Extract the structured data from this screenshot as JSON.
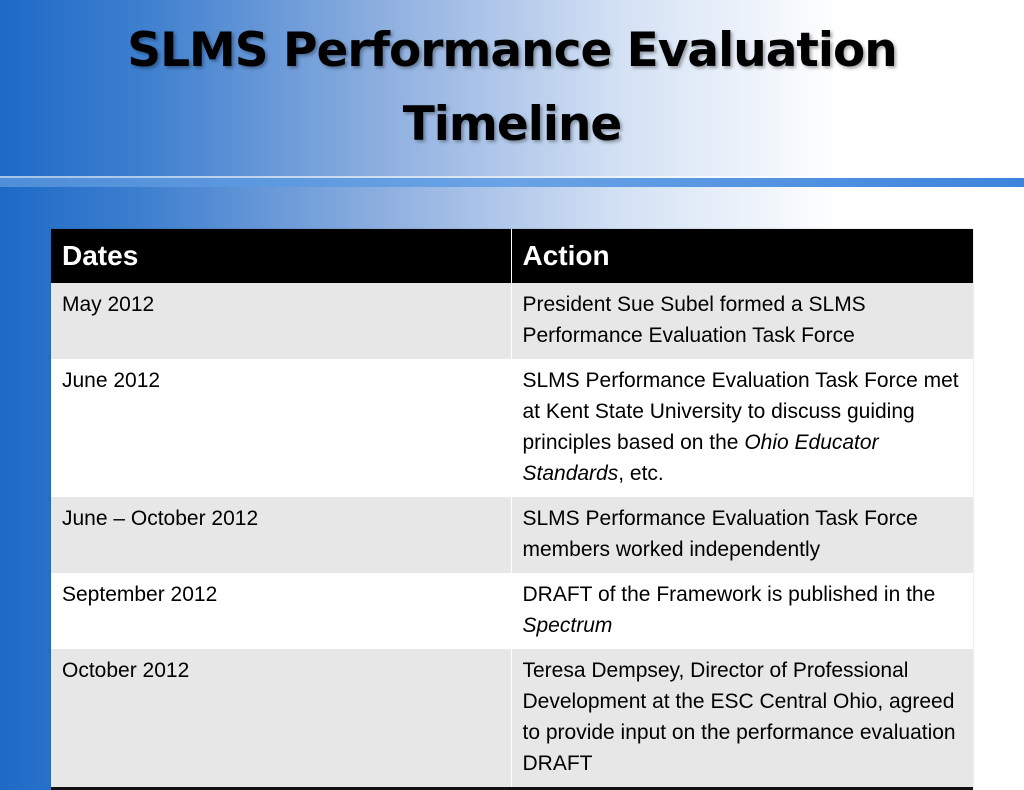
{
  "slide": {
    "title_line1": "SLMS Performance Evaluation",
    "title_line2": "Timeline"
  },
  "table": {
    "headers": [
      "Dates",
      "Action"
    ],
    "rows": [
      {
        "date": "May 2012",
        "action": "President Sue Subel formed a SLMS Performance Evaluation Task Force"
      },
      {
        "date": "June 2012",
        "action_part1": "SLMS Performance Evaluation Task Force met at Kent State University to discuss guiding principles based on the ",
        "action_em": "Ohio Educator Standards",
        "action_part2": ", etc."
      },
      {
        "date": "June – October 2012",
        "action": "SLMS Performance Evaluation Task Force members  worked independently"
      },
      {
        "date": "September 2012",
        "action_part1": "DRAFT of the Framework is published in the ",
        "action_em": "Spectrum"
      },
      {
        "date": "October 2012",
        "action": "Teresa Dempsey, Director of Professional Development at the ESC Central Ohio, agreed to provide input on the performance evaluation DRAFT"
      }
    ]
  },
  "colors": {
    "header_bg": "#000000",
    "row_shade": "#e7e7e7",
    "accent_rule": "#4f8ed8"
  }
}
